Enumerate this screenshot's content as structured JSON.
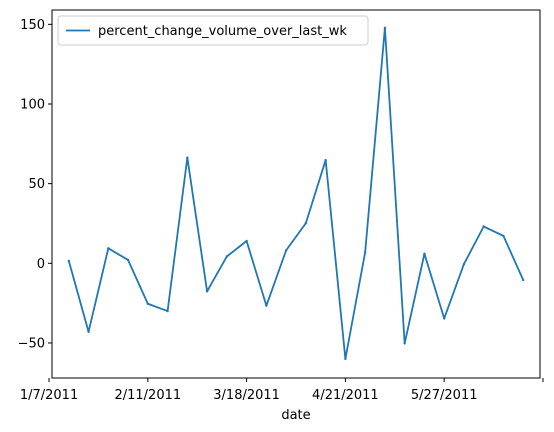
{
  "chart_data": {
    "type": "line",
    "xlabel": "date",
    "ylabel": "",
    "ylim": [
      -72,
      159
    ],
    "y_ticks": [
      -50,
      0,
      50,
      100,
      150
    ],
    "x_ticks": [
      {
        "index": 0,
        "label": "1/7/2011"
      },
      {
        "index": 5,
        "label": "2/11/2011"
      },
      {
        "index": 10,
        "label": "3/18/2011"
      },
      {
        "index": 15,
        "label": "4/21/2011"
      },
      {
        "index": 20,
        "label": "5/27/2011"
      },
      {
        "index": 25,
        "label": ""
      }
    ],
    "grid": false,
    "legend": "upper-left",
    "line_color": "#1f77b4",
    "series": [
      {
        "name": "percent_change_volume_over_last_wk",
        "x": [
          "1/14/2011",
          "1/21/2011",
          "1/28/2011",
          "2/4/2011",
          "2/11/2011",
          "2/18/2011",
          "2/25/2011",
          "3/4/2011",
          "3/11/2011",
          "3/18/2011",
          "3/25/2011",
          "4/1/2011",
          "4/8/2011",
          "4/15/2011",
          "4/21/2011",
          "4/29/2011",
          "5/6/2011",
          "5/13/2011",
          "5/20/2011",
          "5/27/2011",
          "6/3/2011",
          "6/10/2011",
          "6/17/2011",
          "6/24/2011"
        ],
        "values": [
          1.5,
          -43,
          9.4,
          2.1,
          -25.4,
          -30,
          66.3,
          -17.6,
          4.3,
          14,
          -26.6,
          8.1,
          25.2,
          64.8,
          -60,
          6.9,
          147.8,
          -50.3,
          6,
          -34.6,
          -0.5,
          23.1,
          17.2,
          -10.5
        ]
      }
    ]
  }
}
